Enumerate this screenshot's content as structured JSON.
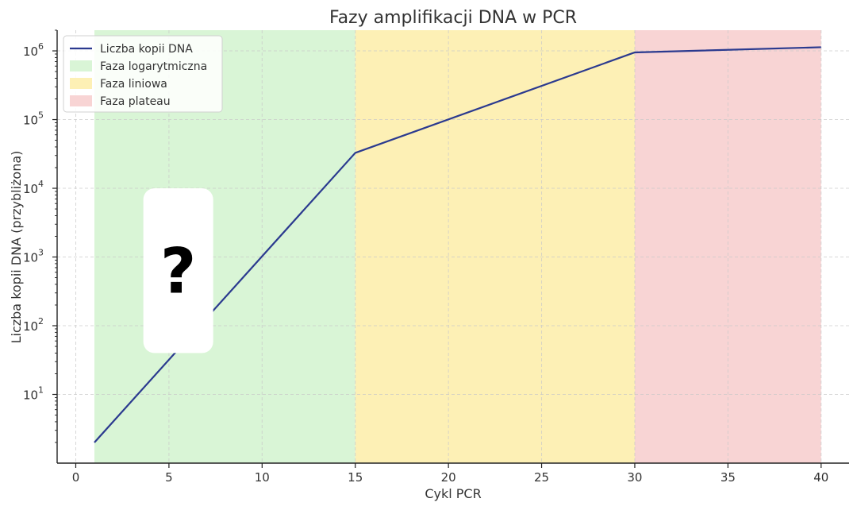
{
  "chart_data": {
    "type": "line",
    "title": "Fazy amplifikacji DNA w PCR",
    "xlabel": "Cykl PCR",
    "ylabel": "Liczba kopii DNA (przybliżona)",
    "xlim": [
      -1,
      41.5
    ],
    "ylim": [
      1,
      2000000
    ],
    "yscale": "log",
    "grid": true,
    "legend_position": "top-left",
    "x_ticks": [
      0,
      5,
      10,
      15,
      20,
      25,
      30,
      35,
      40
    ],
    "x_tick_labels": [
      "0",
      "5",
      "10",
      "15",
      "20",
      "25",
      "30",
      "35",
      "40"
    ],
    "y_ticks": [
      10,
      100,
      1000,
      10000,
      100000,
      1000000
    ],
    "y_tick_labels": [
      {
        "base": "10",
        "exp": "1"
      },
      {
        "base": "10",
        "exp": "2"
      },
      {
        "base": "10",
        "exp": "3"
      },
      {
        "base": "10",
        "exp": "4"
      },
      {
        "base": "10",
        "exp": "5"
      },
      {
        "base": "10",
        "exp": "6"
      }
    ],
    "series": [
      {
        "name": "Liczba kopii DNA",
        "color": "#2b3a8f",
        "x": [
          1,
          15,
          30,
          40
        ],
        "y": [
          2,
          32768,
          950000,
          1130000
        ]
      }
    ],
    "phases": [
      {
        "name": "Faza logarytmiczna",
        "x_start": 1,
        "x_end": 15,
        "color": "#d9f5d6"
      },
      {
        "name": "Faza liniowa",
        "x_start": 15,
        "x_end": 30,
        "color": "#fdf0b5"
      },
      {
        "name": "Faza plateau",
        "x_start": 30,
        "x_end": 40,
        "color": "#f8d4d4"
      }
    ],
    "annotation": {
      "text": "?",
      "x": 5.5,
      "y_low": 40,
      "y_high": 10000
    }
  }
}
